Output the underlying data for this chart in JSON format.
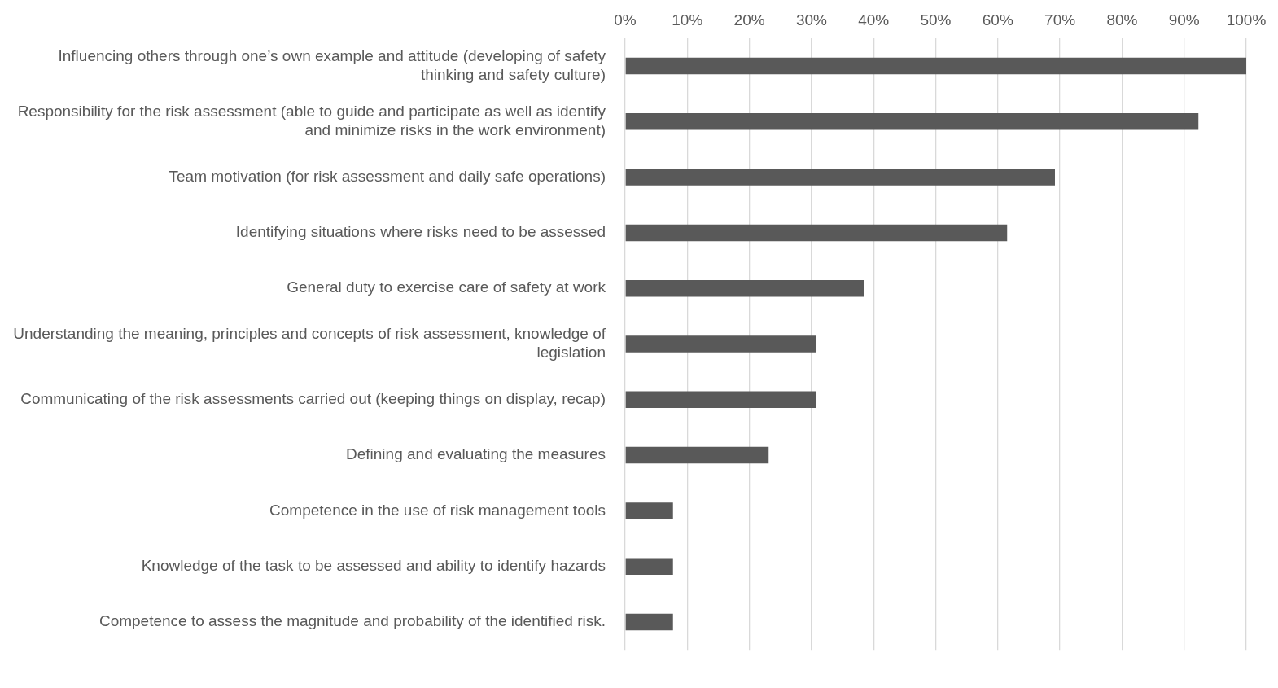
{
  "chart_data": {
    "type": "bar",
    "orientation": "horizontal",
    "categories": [
      "Influencing others through one’s own example and attitude (developing of safety thinking and safety culture)",
      "Responsibility for the risk assessment (able to guide and participate as well as identify and minimize risks in the work environment)",
      "Team motivation (for risk assessment and daily safe operations)",
      "Identifying situations where risks need to be assessed",
      "General duty to exercise care of safety at work",
      "Understanding the meaning, principles and concepts of risk assessment, knowledge of legislation",
      "Communicating of the risk assessments carried out (keeping things on display, recap)",
      "Defining and evaluating the measures",
      "Competence in the use of risk management tools",
      "Knowledge of the task to be assessed and ability to identify hazards",
      "Competence to assess the magnitude and probability of the identified risk."
    ],
    "values": [
      100,
      92.3,
      69.2,
      61.5,
      38.5,
      30.8,
      30.8,
      23.1,
      7.7,
      7.7,
      7.7
    ],
    "color": "#595959",
    "xlim": [
      0,
      100
    ],
    "xticks": [
      {
        "value": 0,
        "label": "0%"
      },
      {
        "value": 10,
        "label": "10%"
      },
      {
        "value": 20,
        "label": "20%"
      },
      {
        "value": 30,
        "label": "30%"
      },
      {
        "value": 40,
        "label": "40%"
      },
      {
        "value": 50,
        "label": "50%"
      },
      {
        "value": 60,
        "label": "60%"
      },
      {
        "value": 70,
        "label": "70%"
      },
      {
        "value": 80,
        "label": "80%"
      },
      {
        "value": 90,
        "label": "90%"
      },
      {
        "value": 100,
        "label": "100%"
      }
    ],
    "grid": "x",
    "legend": false
  }
}
